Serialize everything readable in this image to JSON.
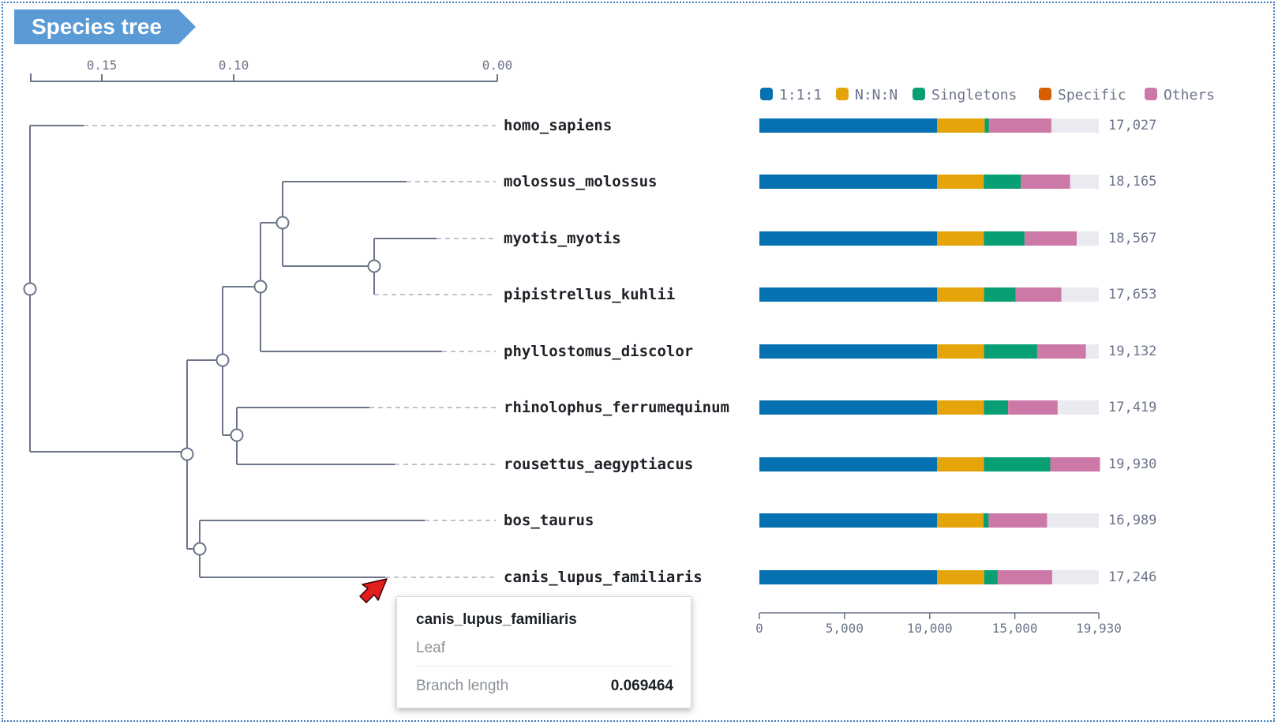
{
  "header": {
    "title": "Species tree"
  },
  "chart_data": {
    "type": "bar",
    "stacked": true,
    "orientation": "horizontal",
    "tree_scale": {
      "axis_direction": "reversed",
      "ticks": [
        0.15,
        0.1,
        0.0
      ],
      "tick_labels": [
        "0.15",
        "0.10",
        "0.00"
      ]
    },
    "legend": {
      "placement": "top",
      "entries": [
        {
          "name": "1:1:1",
          "color": "#0571b0"
        },
        {
          "name": "N:N:N",
          "color": "#e5a50a"
        },
        {
          "name": "Singletons",
          "color": "#079f73"
        },
        {
          "name": "Specific",
          "color": "#d55e00"
        },
        {
          "name": "Others",
          "color": "#cc79a7"
        }
      ]
    },
    "categories": [
      "homo_sapiens",
      "molossus_molossus",
      "myotis_myotis",
      "pipistrellus_kuhlii",
      "phyllostomus_discolor",
      "rhinolophus_ferrumequinum",
      "rousettus_aegyptiacus",
      "bos_taurus",
      "canis_lupus_familiaris"
    ],
    "series": [
      {
        "name": "1:1:1",
        "values": [
          10440,
          10440,
          10440,
          10440,
          10440,
          10440,
          10440,
          10440,
          10440
        ]
      },
      {
        "name": "N:N:N",
        "values": [
          2790,
          2730,
          2740,
          2750,
          2750,
          2740,
          2740,
          2720,
          2760
        ]
      },
      {
        "name": "Singletons",
        "values": [
          250,
          2180,
          2390,
          1850,
          3120,
          1420,
          3900,
          300,
          750
        ]
      },
      {
        "name": "Specific",
        "values": [
          10,
          10,
          10,
          10,
          10,
          10,
          10,
          10,
          50
        ]
      },
      {
        "name": "Others",
        "values": [
          3650,
          2880,
          3050,
          2680,
          2850,
          2900,
          2910,
          3420,
          3190
        ]
      }
    ],
    "totals": [
      17027,
      18165,
      18567,
      17653,
      19132,
      17419,
      19930,
      16989,
      17246
    ],
    "total_labels": [
      "17,027",
      "18,165",
      "18,567",
      "17,653",
      "19,132",
      "17,419",
      "19,930",
      "16,989",
      "17,246"
    ],
    "x_ticks": [
      0,
      5000,
      10000,
      15000,
      19930
    ],
    "x_tick_labels": [
      "0",
      "5,000",
      "10,000",
      "15,000",
      "19,930"
    ],
    "xlim": [
      0,
      19930
    ],
    "track_color": "#e9ebf1",
    "tree_color": "#6b7489",
    "grid": false
  },
  "tooltip": {
    "title": "canis_lupus_familiaris",
    "subtitle": "Leaf",
    "label": "Branch length",
    "value": "0.069464"
  },
  "pointer": {
    "color": "#e31e1e"
  }
}
